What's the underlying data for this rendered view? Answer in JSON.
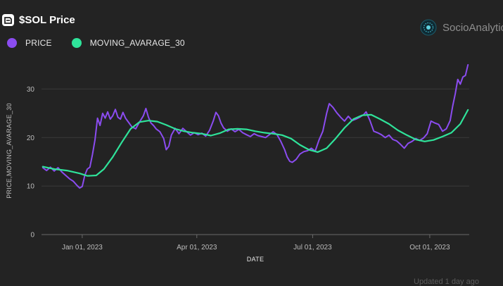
{
  "header": {
    "title": "$SOL Price",
    "brand": "SocioAnalytic"
  },
  "footer": {
    "updated": "Updated 1 day ago"
  },
  "colors": {
    "background": "#232323",
    "price": "#8b4cf0",
    "moving_average": "#2fe39a",
    "grid": "#3a3a3a",
    "axis_text": "#bdbdbd"
  },
  "chart_data": {
    "type": "line",
    "title": "$SOL Price",
    "xlabel": "DATE",
    "ylabel": "PRICE,MOVING_AVARAGE_30",
    "xlim": [
      "2022-11-30",
      "2023-11-01"
    ],
    "ylim": [
      0,
      35
    ],
    "yticks": [
      0,
      10,
      20,
      30
    ],
    "xticks": [
      {
        "date": "2023-01-01",
        "label": "Jan 01, 2023"
      },
      {
        "date": "2023-04-01",
        "label": "Apr 01, 2023"
      },
      {
        "date": "2023-07-01",
        "label": "Jul 01, 2023"
      },
      {
        "date": "2023-10-01",
        "label": "Oct 01, 2023"
      }
    ],
    "grid": true,
    "legend": "top-left",
    "series": [
      {
        "name": "PRICE",
        "color": "#8b4cf0",
        "points": [
          [
            "2022-12-01",
            13.8
          ],
          [
            "2022-12-04",
            13.2
          ],
          [
            "2022-12-07",
            13.9
          ],
          [
            "2022-12-10",
            13.1
          ],
          [
            "2022-12-13",
            13.8
          ],
          [
            "2022-12-16",
            12.9
          ],
          [
            "2022-12-19",
            12.2
          ],
          [
            "2022-12-22",
            11.5
          ],
          [
            "2022-12-25",
            11.0
          ],
          [
            "2022-12-28",
            10.1
          ],
          [
            "2022-12-30",
            9.6
          ],
          [
            "2023-01-01",
            9.9
          ],
          [
            "2023-01-03",
            12.2
          ],
          [
            "2023-01-05",
            13.5
          ],
          [
            "2023-01-07",
            13.9
          ],
          [
            "2023-01-09",
            16.5
          ],
          [
            "2023-01-11",
            19.5
          ],
          [
            "2023-01-13",
            24.0
          ],
          [
            "2023-01-15",
            22.5
          ],
          [
            "2023-01-17",
            25.0
          ],
          [
            "2023-01-19",
            24.0
          ],
          [
            "2023-01-21",
            25.3
          ],
          [
            "2023-01-23",
            23.8
          ],
          [
            "2023-01-25",
            24.5
          ],
          [
            "2023-01-27",
            25.8
          ],
          [
            "2023-01-29",
            24.2
          ],
          [
            "2023-01-31",
            23.8
          ],
          [
            "2023-02-02",
            25.2
          ],
          [
            "2023-02-04",
            24.0
          ],
          [
            "2023-02-06",
            23.3
          ],
          [
            "2023-02-09",
            22.2
          ],
          [
            "2023-02-12",
            21.8
          ],
          [
            "2023-02-15",
            23.2
          ],
          [
            "2023-02-18",
            24.5
          ],
          [
            "2023-02-20",
            26.0
          ],
          [
            "2023-02-22",
            24.2
          ],
          [
            "2023-02-24",
            23.0
          ],
          [
            "2023-02-26",
            22.5
          ],
          [
            "2023-02-28",
            21.8
          ],
          [
            "2023-03-03",
            21.2
          ],
          [
            "2023-03-06",
            19.8
          ],
          [
            "2023-03-08",
            17.5
          ],
          [
            "2023-03-10",
            18.2
          ],
          [
            "2023-03-12",
            20.5
          ],
          [
            "2023-03-15",
            21.9
          ],
          [
            "2023-03-18",
            20.8
          ],
          [
            "2023-03-21",
            21.9
          ],
          [
            "2023-03-24",
            21.2
          ],
          [
            "2023-03-27",
            20.5
          ],
          [
            "2023-03-30",
            21.0
          ],
          [
            "2023-04-02",
            20.6
          ],
          [
            "2023-04-05",
            20.9
          ],
          [
            "2023-04-08",
            20.3
          ],
          [
            "2023-04-11",
            21.5
          ],
          [
            "2023-04-14",
            23.5
          ],
          [
            "2023-04-16",
            25.2
          ],
          [
            "2023-04-18",
            24.5
          ],
          [
            "2023-04-20",
            23.0
          ],
          [
            "2023-04-22",
            22.0
          ],
          [
            "2023-04-25",
            21.3
          ],
          [
            "2023-04-28",
            21.8
          ],
          [
            "2023-05-01",
            21.2
          ],
          [
            "2023-05-04",
            21.7
          ],
          [
            "2023-05-07",
            21.0
          ],
          [
            "2023-05-10",
            20.6
          ],
          [
            "2023-05-13",
            20.2
          ],
          [
            "2023-05-16",
            20.8
          ],
          [
            "2023-05-19",
            20.4
          ],
          [
            "2023-05-22",
            20.2
          ],
          [
            "2023-05-25",
            20.0
          ],
          [
            "2023-05-28",
            20.6
          ],
          [
            "2023-05-31",
            21.2
          ],
          [
            "2023-06-03",
            20.6
          ],
          [
            "2023-06-06",
            19.2
          ],
          [
            "2023-06-09",
            17.5
          ],
          [
            "2023-06-11",
            16.0
          ],
          [
            "2023-06-13",
            15.1
          ],
          [
            "2023-06-15",
            14.9
          ],
          [
            "2023-06-18",
            15.5
          ],
          [
            "2023-06-21",
            16.6
          ],
          [
            "2023-06-24",
            17.1
          ],
          [
            "2023-06-27",
            17.3
          ],
          [
            "2023-06-30",
            17.8
          ],
          [
            "2023-07-03",
            17.2
          ],
          [
            "2023-07-06",
            19.5
          ],
          [
            "2023-07-09",
            21.3
          ],
          [
            "2023-07-12",
            25.0
          ],
          [
            "2023-07-14",
            27.0
          ],
          [
            "2023-07-17",
            26.2
          ],
          [
            "2023-07-20",
            25.1
          ],
          [
            "2023-07-23",
            24.2
          ],
          [
            "2023-07-26",
            23.4
          ],
          [
            "2023-07-29",
            24.4
          ],
          [
            "2023-08-01",
            23.5
          ],
          [
            "2023-08-04",
            23.8
          ],
          [
            "2023-08-07",
            24.2
          ],
          [
            "2023-08-10",
            24.7
          ],
          [
            "2023-08-12",
            25.3
          ],
          [
            "2023-08-15",
            23.5
          ],
          [
            "2023-08-18",
            21.3
          ],
          [
            "2023-08-21",
            21.0
          ],
          [
            "2023-08-24",
            20.6
          ],
          [
            "2023-08-27",
            20.0
          ],
          [
            "2023-08-30",
            20.5
          ],
          [
            "2023-09-02",
            19.6
          ],
          [
            "2023-09-05",
            19.3
          ],
          [
            "2023-09-08",
            18.6
          ],
          [
            "2023-09-11",
            17.8
          ],
          [
            "2023-09-14",
            18.8
          ],
          [
            "2023-09-17",
            19.2
          ],
          [
            "2023-09-20",
            19.8
          ],
          [
            "2023-09-23",
            19.4
          ],
          [
            "2023-09-26",
            19.9
          ],
          [
            "2023-09-29",
            20.8
          ],
          [
            "2023-10-02",
            23.4
          ],
          [
            "2023-10-05",
            23.0
          ],
          [
            "2023-10-08",
            22.7
          ],
          [
            "2023-10-11",
            21.3
          ],
          [
            "2023-10-14",
            21.8
          ],
          [
            "2023-10-17",
            23.5
          ],
          [
            "2023-10-19",
            26.5
          ],
          [
            "2023-10-21",
            29.0
          ],
          [
            "2023-10-23",
            32.0
          ],
          [
            "2023-10-25",
            31.0
          ],
          [
            "2023-10-27",
            32.5
          ],
          [
            "2023-10-29",
            32.8
          ],
          [
            "2023-10-31",
            35.0
          ]
        ]
      },
      {
        "name": "MOVING_AVARAGE_30",
        "color": "#2fe39a",
        "points": [
          [
            "2022-12-01",
            14.0
          ],
          [
            "2022-12-10",
            13.5
          ],
          [
            "2022-12-20",
            13.2
          ],
          [
            "2022-12-30",
            12.6
          ],
          [
            "2023-01-05",
            12.1
          ],
          [
            "2023-01-12",
            12.2
          ],
          [
            "2023-01-18",
            13.5
          ],
          [
            "2023-01-25",
            16.0
          ],
          [
            "2023-02-01",
            19.0
          ],
          [
            "2023-02-08",
            21.8
          ],
          [
            "2023-02-15",
            23.2
          ],
          [
            "2023-02-22",
            23.5
          ],
          [
            "2023-03-01",
            23.3
          ],
          [
            "2023-03-08",
            22.6
          ],
          [
            "2023-03-15",
            21.8
          ],
          [
            "2023-03-22",
            21.3
          ],
          [
            "2023-03-29",
            21.0
          ],
          [
            "2023-04-05",
            20.8
          ],
          [
            "2023-04-12",
            20.4
          ],
          [
            "2023-04-19",
            20.9
          ],
          [
            "2023-04-26",
            21.7
          ],
          [
            "2023-05-03",
            21.8
          ],
          [
            "2023-05-10",
            21.7
          ],
          [
            "2023-05-17",
            21.3
          ],
          [
            "2023-05-24",
            21.0
          ],
          [
            "2023-05-31",
            20.8
          ],
          [
            "2023-06-07",
            20.5
          ],
          [
            "2023-06-14",
            19.8
          ],
          [
            "2023-06-21",
            18.5
          ],
          [
            "2023-06-28",
            17.5
          ],
          [
            "2023-07-05",
            17.0
          ],
          [
            "2023-07-12",
            17.8
          ],
          [
            "2023-07-19",
            19.8
          ],
          [
            "2023-07-26",
            22.0
          ],
          [
            "2023-08-02",
            23.8
          ],
          [
            "2023-08-09",
            24.6
          ],
          [
            "2023-08-16",
            24.7
          ],
          [
            "2023-08-23",
            23.8
          ],
          [
            "2023-08-30",
            22.8
          ],
          [
            "2023-09-06",
            21.5
          ],
          [
            "2023-09-13",
            20.5
          ],
          [
            "2023-09-20",
            19.6
          ],
          [
            "2023-09-27",
            19.2
          ],
          [
            "2023-10-04",
            19.5
          ],
          [
            "2023-10-11",
            20.2
          ],
          [
            "2023-10-18",
            21.0
          ],
          [
            "2023-10-25",
            22.8
          ],
          [
            "2023-10-31",
            25.7
          ]
        ]
      }
    ]
  }
}
